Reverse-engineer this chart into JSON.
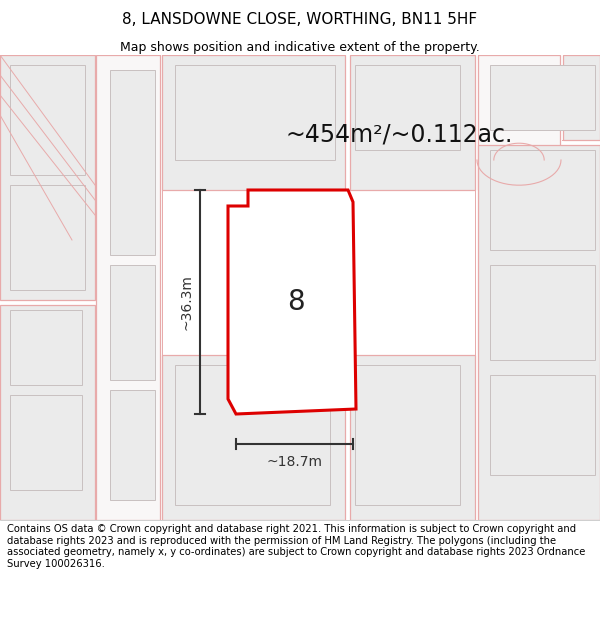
{
  "title": "8, LANSDOWNE CLOSE, WORTHING, BN11 5HF",
  "subtitle": "Map shows position and indicative extent of the property.",
  "footer": "Contains OS data © Crown copyright and database right 2021. This information is subject to Crown copyright and database rights 2023 and is reproduced with the permission of HM Land Registry. The polygons (including the associated geometry, namely x, y co-ordinates) are subject to Crown copyright and database rights 2023 Ordnance Survey 100026316.",
  "area_text": "~454m²/~0.112ac.",
  "dim_width": "~18.7m",
  "dim_height": "~36.3m",
  "plot_number": "8",
  "map_bg": "#f9f7f7",
  "plot_fill": "#ffffff",
  "plot_edge": "#dd0000",
  "dim_color": "#333333",
  "bld_fill": "#ebebeb",
  "bld_edge": "#c8c0c0",
  "pink_line": "#e8aaaa",
  "title_fontsize": 11,
  "subtitle_fontsize": 9,
  "footer_fontsize": 7.2,
  "area_fontsize": 17,
  "dim_fontsize": 10,
  "plot_label_fontsize": 20
}
